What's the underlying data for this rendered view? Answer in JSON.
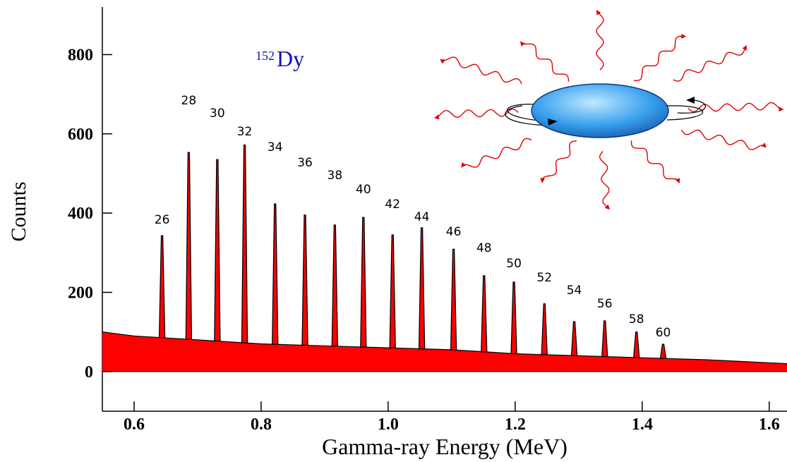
{
  "chart_data": {
    "type": "spectrum",
    "nucleus": {
      "mass": 152,
      "symbol": "Dy"
    },
    "xlabel": "Gamma-ray Energy (MeV)",
    "ylabel": "Counts",
    "xlim": [
      0.55,
      1.628
    ],
    "ylim": [
      -100,
      920
    ],
    "xticks": [
      0.6,
      0.8,
      {
        "value": 1,
        "label": "1.0"
      },
      1.2,
      1.4,
      1.6
    ],
    "yticks": [
      0,
      200,
      400,
      600,
      800
    ],
    "color": "#ff0000",
    "background": {
      "x": [
        0.55,
        0.6,
        0.7,
        0.8,
        0.9,
        1,
        1.1,
        1.2,
        1.3,
        1.4,
        1.5,
        1.628
      ],
      "values": [
        100,
        90,
        80,
        70,
        65,
        60,
        55,
        45,
        40,
        35,
        30,
        20
      ]
    },
    "peaks": {
      "spins": [
        26,
        28,
        30,
        32,
        34,
        36,
        38,
        40,
        42,
        44,
        46,
        48,
        50,
        52,
        54,
        56,
        58,
        60
      ],
      "x": [
        0.644,
        0.686,
        0.731,
        0.774,
        0.822,
        0.869,
        0.916,
        0.961,
        1.007,
        1.053,
        1.103,
        1.151,
        1.198,
        1.246,
        1.293,
        1.341,
        1.391,
        1.433
      ],
      "values": [
        343,
        553,
        535,
        572,
        423,
        395,
        370,
        389,
        345,
        363,
        309,
        242,
        226,
        171,
        126,
        128,
        100,
        69
      ]
    }
  }
}
